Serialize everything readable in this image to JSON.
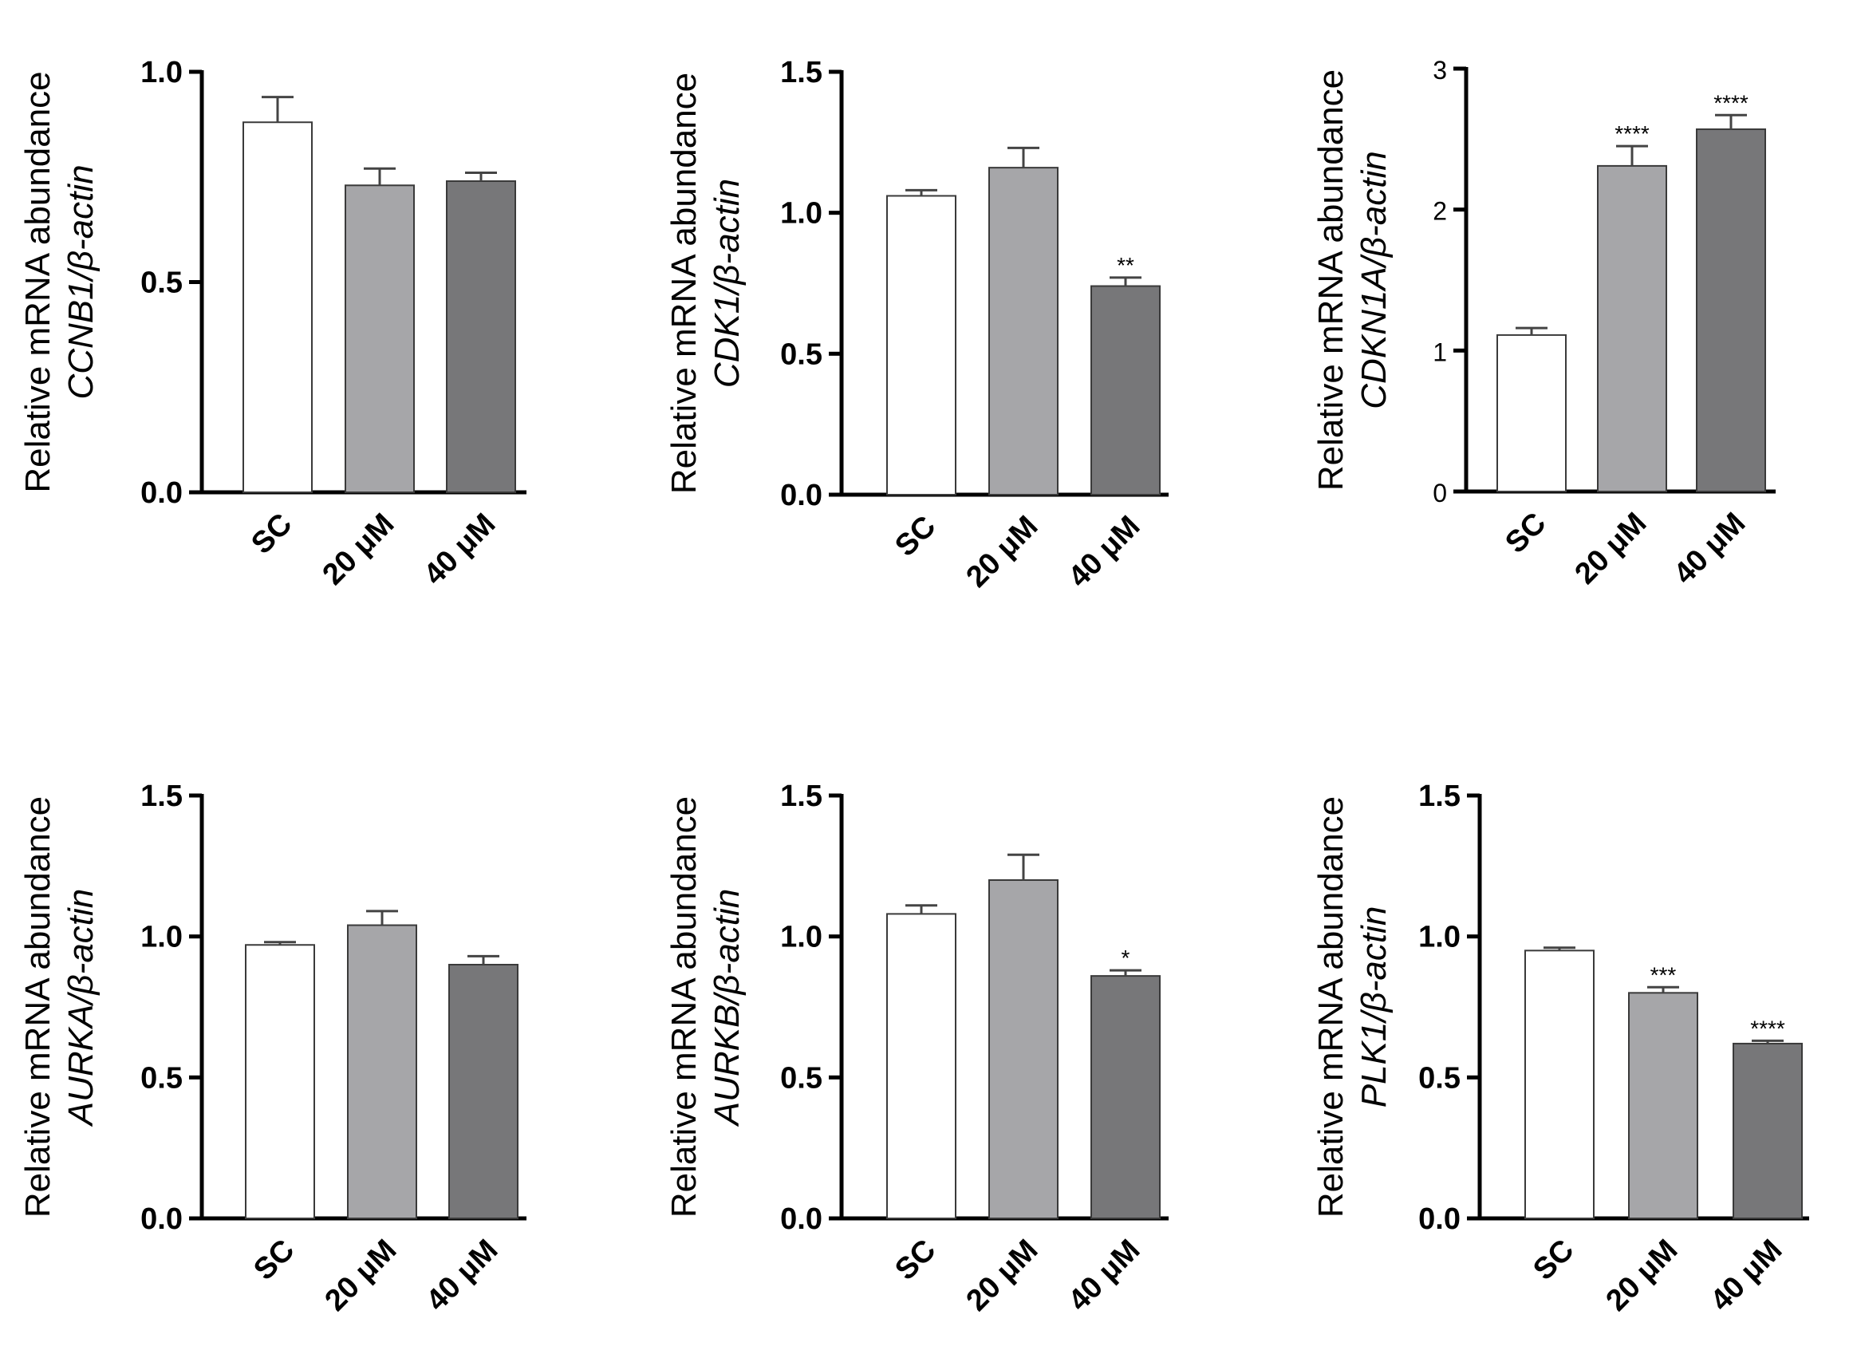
{
  "chart_data": [
    {
      "type": "bar",
      "gene": "CCNB1",
      "ylabel_line1": "Relative mRNA abundance",
      "ylabel_line2": "CCNB1/β-actin",
      "categories": [
        "SC",
        "20 μM",
        "40 μM"
      ],
      "values": [
        0.88,
        0.73,
        0.74
      ],
      "errors": [
        0.06,
        0.04,
        0.02
      ],
      "significance": [
        "",
        "",
        ""
      ],
      "ylim": [
        0,
        1.0
      ],
      "yticks": [
        0.0,
        0.5,
        1.0
      ],
      "ytick_labels": [
        "0.0",
        "0.5",
        "1.0"
      ],
      "colors": [
        "#ffffff",
        "#a6a6a9",
        "#777779"
      ]
    },
    {
      "type": "bar",
      "gene": "CDK1",
      "ylabel_line1": "Relative mRNA abundance",
      "ylabel_line2": "CDK1/β-actin",
      "categories": [
        "SC",
        "20 μM",
        "40 μM"
      ],
      "values": [
        1.06,
        1.16,
        0.74
      ],
      "errors": [
        0.02,
        0.07,
        0.03
      ],
      "significance": [
        "",
        "",
        "**"
      ],
      "ylim": [
        0,
        1.5
      ],
      "yticks": [
        0.0,
        0.5,
        1.0,
        1.5
      ],
      "ytick_labels": [
        "0.0",
        "0.5",
        "1.0",
        "1.5"
      ],
      "colors": [
        "#ffffff",
        "#a6a6a9",
        "#777779"
      ]
    },
    {
      "type": "bar",
      "gene": "CDKN1A",
      "ylabel_line1": "Relative mRNA abundance",
      "ylabel_line2": "CDKN1A/β-actin",
      "categories": [
        "SC",
        "20 μM",
        "40  μM"
      ],
      "values": [
        1.11,
        2.31,
        2.57
      ],
      "errors": [
        0.05,
        0.14,
        0.1
      ],
      "significance": [
        "",
        "****",
        "****"
      ],
      "ylim": [
        0,
        3
      ],
      "yticks": [
        0,
        1,
        2,
        3
      ],
      "ytick_labels": [
        "0",
        "1",
        "2",
        "3"
      ],
      "colors": [
        "#ffffff",
        "#a6a6a9",
        "#777779"
      ]
    },
    {
      "type": "bar",
      "gene": "AURKA",
      "ylabel_line1": "Relative mRNA abundance",
      "ylabel_line2": "AURKA/β-actin",
      "categories": [
        "SC",
        "20 μM",
        "40 μM"
      ],
      "values": [
        0.97,
        1.04,
        0.9
      ],
      "errors": [
        0.01,
        0.05,
        0.03
      ],
      "significance": [
        "",
        "",
        ""
      ],
      "ylim": [
        0,
        1.5
      ],
      "yticks": [
        0.0,
        0.5,
        1.0,
        1.5
      ],
      "ytick_labels": [
        "0.0",
        "0.5",
        "1.0",
        "1.5"
      ],
      "colors": [
        "#ffffff",
        "#a6a6a9",
        "#777779"
      ]
    },
    {
      "type": "bar",
      "gene": "AURKB",
      "ylabel_line1": "Relative mRNA abundance",
      "ylabel_line2": "AURKB/β-actin",
      "categories": [
        "SC",
        "20 μM",
        "40 μM"
      ],
      "values": [
        1.08,
        1.2,
        0.86
      ],
      "errors": [
        0.03,
        0.09,
        0.02
      ],
      "significance": [
        "",
        "",
        "*"
      ],
      "ylim": [
        0,
        1.5
      ],
      "yticks": [
        0.0,
        0.5,
        1.0,
        1.5
      ],
      "ytick_labels": [
        "0.0",
        "0.5",
        "1.0",
        "1.5"
      ],
      "colors": [
        "#ffffff",
        "#a6a6a9",
        "#777779"
      ]
    },
    {
      "type": "bar",
      "gene": "PLK1",
      "ylabel_line1": "Relative mRNA abundance",
      "ylabel_line2": "PLK1/β-actin",
      "categories": [
        "SC",
        "20 μM",
        "40 μM"
      ],
      "values": [
        0.95,
        0.8,
        0.62
      ],
      "errors": [
        0.01,
        0.02,
        0.01
      ],
      "significance": [
        "",
        "***",
        "****"
      ],
      "ylim": [
        0,
        1.5
      ],
      "yticks": [
        0.0,
        0.5,
        1.0,
        1.5
      ],
      "ytick_labels": [
        "0.0",
        "0.5",
        "1.0",
        "1.5"
      ],
      "colors": [
        "#ffffff",
        "#a6a6a9",
        "#777779"
      ]
    }
  ]
}
